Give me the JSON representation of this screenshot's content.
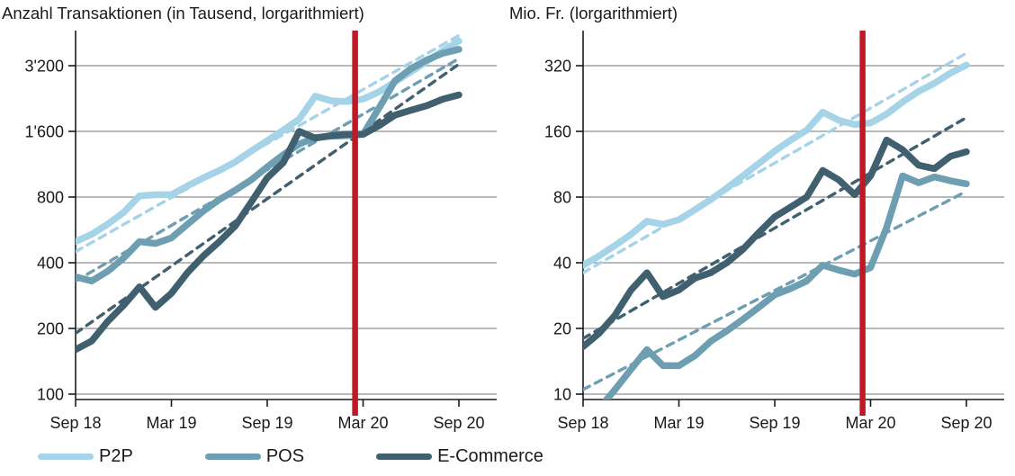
{
  "colors": {
    "p2p": "#a5d3e8",
    "pos": "#6e9eb2",
    "ecommerce": "#405f6f",
    "event_line": "#c01926",
    "axis": "#1a1a1a",
    "grid": "#8f8f8f",
    "text": "#1a1a1a"
  },
  "legend": {
    "items": [
      {
        "label": "P2P",
        "color_key": "p2p"
      },
      {
        "label": "POS",
        "color_key": "pos"
      },
      {
        "label": "E-Commerce",
        "color_key": "ecommerce"
      }
    ]
  },
  "chart_data": [
    {
      "type": "line",
      "title": "Anzahl Transaktionen (in Tausend, lorgarithmiert)",
      "y_scale": "log2",
      "ylabel": "Anzahl Transaktionen (in Tausend)",
      "x_tick_labels": [
        "Sep 18",
        "Mar 19",
        "Sep 19",
        "Mar 20",
        "Sep 20"
      ],
      "x_tick_month_index": [
        0,
        6,
        12,
        18,
        24
      ],
      "y_ticks": [
        {
          "label": "3'200",
          "value": 3200
        },
        {
          "label": "1'600",
          "value": 1600
        },
        {
          "label": "800",
          "value": 800
        },
        {
          "label": "400",
          "value": 400
        },
        {
          "label": "200",
          "value": 200
        },
        {
          "label": "100",
          "value": 100
        }
      ],
      "series": [
        {
          "name": "P2P",
          "color_key": "p2p",
          "values": [
            500,
            540,
            600,
            680,
            810,
            820,
            820,
            900,
            980,
            1060,
            1160,
            1300,
            1450,
            1620,
            1820,
            2320,
            2210,
            2190,
            2250,
            2430,
            2700,
            3000,
            3350,
            3750,
            4150
          ]
        },
        {
          "name": "POS",
          "color_key": "pos",
          "values": [
            345,
            330,
            365,
            420,
            500,
            490,
            520,
            600,
            690,
            780,
            860,
            960,
            1100,
            1250,
            1400,
            1500,
            1520,
            1530,
            1550,
            2050,
            2730,
            3100,
            3400,
            3650,
            3800
          ]
        },
        {
          "name": "E-Commerce",
          "color_key": "ecommerce",
          "values": [
            160,
            175,
            215,
            255,
            310,
            250,
            290,
            360,
            430,
            500,
            590,
            760,
            980,
            1150,
            1600,
            1490,
            1530,
            1550,
            1550,
            1700,
            1900,
            2000,
            2100,
            2250,
            2350
          ]
        }
      ],
      "trends": [
        {
          "name": "P2P-trend",
          "color_key": "p2p",
          "start": 450,
          "end": 4400
        },
        {
          "name": "POS-trend",
          "color_key": "pos",
          "start": 330,
          "end": 3450
        },
        {
          "name": "E-Commerce-trend",
          "color_key": "ecommerce",
          "start": 190,
          "end": 3250
        }
      ],
      "event_line": {
        "month_index": 17.5
      }
    },
    {
      "type": "line",
      "title": "Mio. Fr. (lorgarithmiert)",
      "y_scale": "log2",
      "ylabel": "Mio. Fr.",
      "x_tick_labels": [
        "Sep 18",
        "Mar 19",
        "Sep 19",
        "Mar 20",
        "Sep 20"
      ],
      "x_tick_month_index": [
        0,
        6,
        12,
        18,
        24
      ],
      "y_ticks": [
        {
          "label": "320",
          "value": 320
        },
        {
          "label": "160",
          "value": 160
        },
        {
          "label": "80",
          "value": 80
        },
        {
          "label": "40",
          "value": 40
        },
        {
          "label": "20",
          "value": 20
        },
        {
          "label": "10",
          "value": 10
        }
      ],
      "series": [
        {
          "name": "P2P",
          "color_key": "p2p",
          "values": [
            39,
            43,
            48,
            54,
            62,
            60,
            63,
            70,
            78,
            88,
            100,
            114,
            130,
            146,
            162,
            196,
            180,
            172,
            175,
            192,
            218,
            244,
            266,
            296,
            322
          ]
        },
        {
          "name": "POS",
          "color_key": "pos",
          "values": [
            7.5,
            8.6,
            10.5,
            13,
            16,
            13.5,
            13.5,
            15,
            17.5,
            19.5,
            22,
            25,
            28.5,
            30.5,
            33,
            39,
            37,
            35.5,
            38,
            58,
            100,
            93,
            99,
            95,
            92
          ]
        },
        {
          "name": "E-Commerce",
          "color_key": "ecommerce",
          "values": [
            16.5,
            19,
            23,
            30,
            36,
            28,
            30,
            34,
            36,
            40,
            46,
            55,
            65,
            72,
            80,
            106,
            96,
            82,
            100,
            146,
            132,
            112,
            108,
            123,
            129
          ]
        }
      ],
      "trends": [
        {
          "name": "P2P-trend",
          "color_key": "p2p",
          "start": 36,
          "end": 365
        },
        {
          "name": "POS-trend",
          "color_key": "pos",
          "start": 10.5,
          "end": 85
        },
        {
          "name": "E-Commerce-trend",
          "color_key": "ecommerce",
          "start": 18,
          "end": 185
        }
      ],
      "event_line": {
        "month_index": 17.5
      }
    }
  ]
}
